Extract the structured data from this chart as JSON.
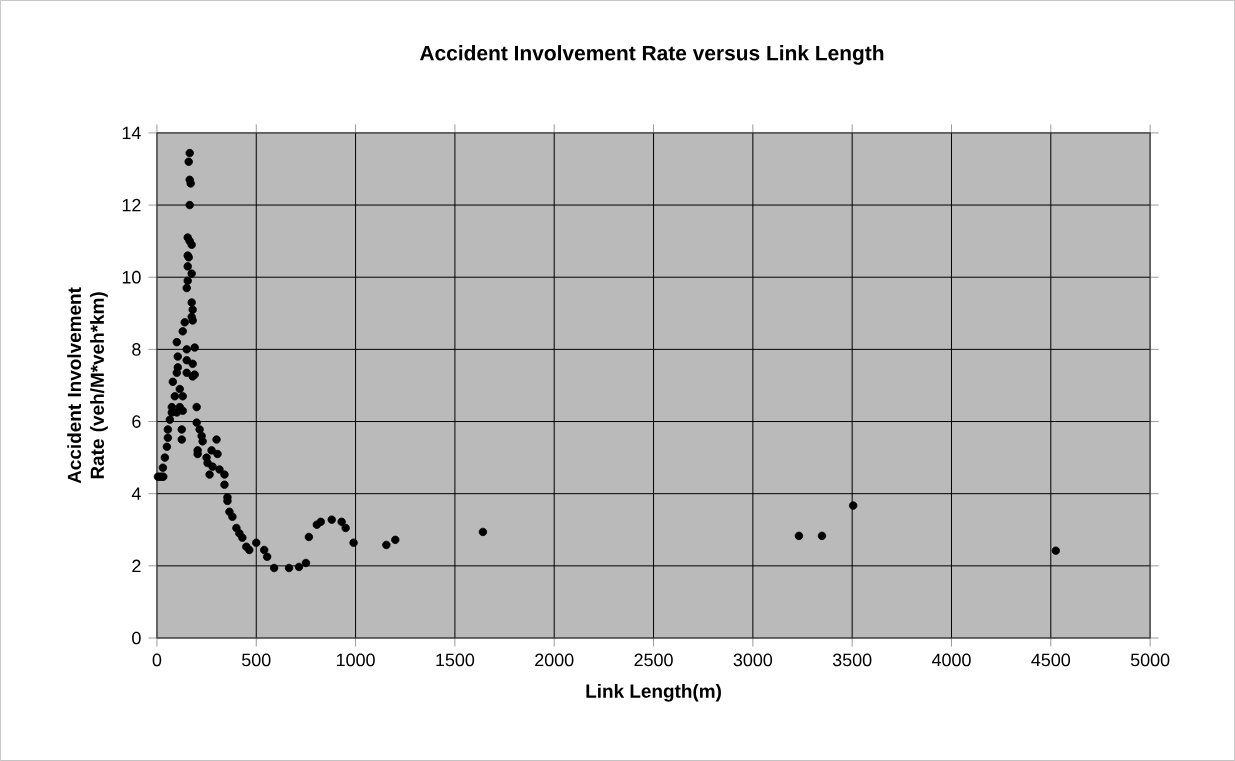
{
  "chart_data": {
    "type": "scatter",
    "title": "Accident Involvement  Rate versus Link Length",
    "xlabel": "Link Length(m)",
    "ylabel": "Accident Involvement Rate (veh/M*veh*km)",
    "xlim": [
      0,
      5000
    ],
    "xticks": [
      0,
      500,
      1000,
      1500,
      2000,
      2500,
      3000,
      3500,
      4000,
      4500,
      5000
    ],
    "ylim": [
      0,
      14
    ],
    "yticks": [
      0,
      2,
      4,
      6,
      8,
      10,
      12,
      14
    ],
    "grid": true,
    "marker": "circle",
    "series": [
      {
        "color": "#000000",
        "x": [
          5,
          15,
          25,
          32,
          30,
          40,
          50,
          55,
          55,
          65,
          75,
          75,
          80,
          90,
          100,
          100,
          100,
          105,
          105,
          115,
          115,
          125,
          125,
          130,
          130,
          130,
          140,
          150,
          150,
          150,
          150,
          155,
          155,
          155,
          155,
          160,
          160,
          165,
          165,
          165,
          165,
          170,
          175,
          175,
          175,
          175,
          180,
          180,
          180,
          180,
          190,
          190,
          200,
          200,
          205,
          205,
          215,
          225,
          230,
          250,
          255,
          265,
          275,
          280,
          300,
          305,
          315,
          340,
          340,
          355,
          355,
          365,
          380,
          400,
          415,
          430,
          450,
          465,
          500,
          540,
          555,
          590,
          665,
          715,
          750,
          765,
          805,
          825,
          880,
          930,
          950,
          990,
          1155,
          1200,
          1641,
          3232,
          3348,
          3505,
          4525
        ],
        "values": [
          4.47,
          4.47,
          4.47,
          4.47,
          4.72,
          5.0,
          5.3,
          5.55,
          5.78,
          6.05,
          6.25,
          6.4,
          7.1,
          6.7,
          7.35,
          6.25,
          8.2,
          7.8,
          7.5,
          6.9,
          6.4,
          5.78,
          5.5,
          8.5,
          6.3,
          6.7,
          8.75,
          7.35,
          7.7,
          8.0,
          9.7,
          10.6,
          10.3,
          11.1,
          9.9,
          10.55,
          13.2,
          13.44,
          12.7,
          12.0,
          11.0,
          12.6,
          10.9,
          10.1,
          9.3,
          8.9,
          9.1,
          8.8,
          7.6,
          7.25,
          8.05,
          7.3,
          6.4,
          5.97,
          5.2,
          5.1,
          5.78,
          5.6,
          5.45,
          5.0,
          4.85,
          4.53,
          5.2,
          4.75,
          5.5,
          5.1,
          4.67,
          4.53,
          4.25,
          3.9,
          3.8,
          3.5,
          3.36,
          3.05,
          2.9,
          2.78,
          2.53,
          2.44,
          2.64,
          2.44,
          2.25,
          1.94,
          1.94,
          1.97,
          2.08,
          2.8,
          3.14,
          3.22,
          3.28,
          3.22,
          3.05,
          2.64,
          2.58,
          2.72,
          2.94,
          2.83,
          2.83,
          3.67,
          2.42
        ]
      }
    ]
  }
}
